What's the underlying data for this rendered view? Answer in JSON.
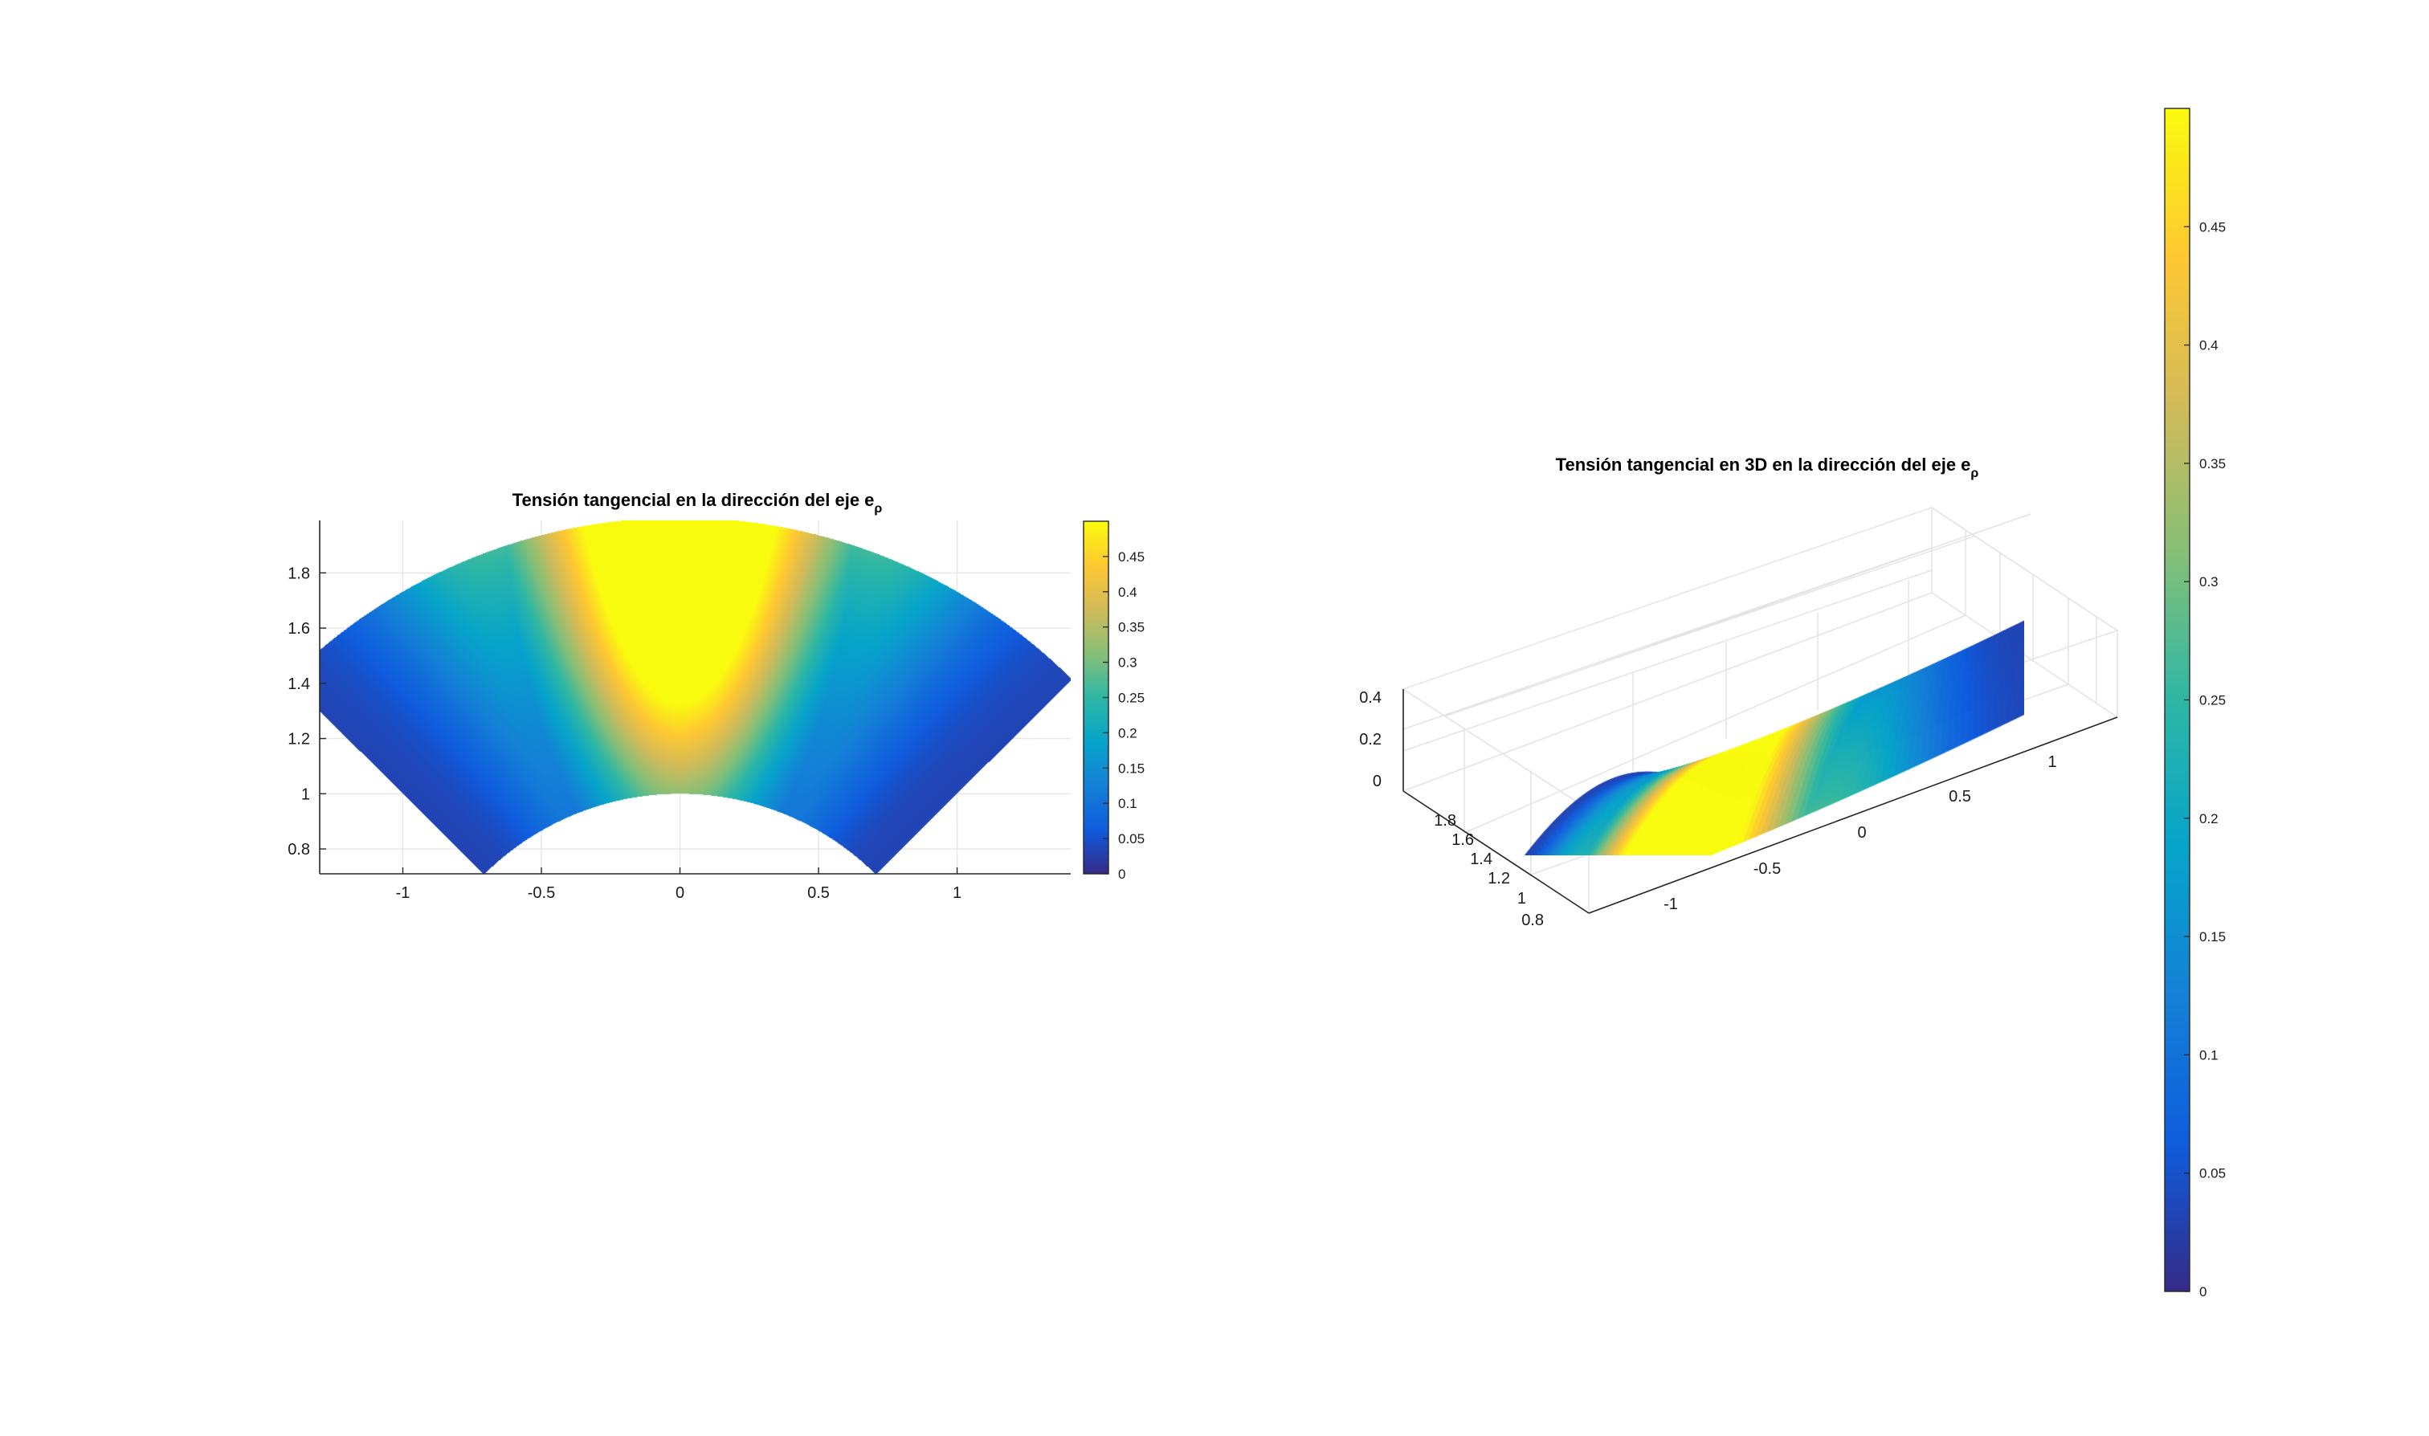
{
  "colors": {
    "colormap": "parula",
    "parula_stops": [
      "#352a87",
      "#0f5cdd",
      "#1481d6",
      "#06a4ca",
      "#2eb7a4",
      "#87bf77",
      "#d1bb59",
      "#fec832",
      "#f9fb0e"
    ],
    "axis": "#262626",
    "grid": "#e6e6e6"
  },
  "chart_data": [
    {
      "type": "heatmap",
      "title": "Tensión tangencial en la dirección del eje e",
      "title_subscript": "ρ",
      "xlabel": "",
      "ylabel": "",
      "xlim": [
        -1.3,
        1.41
      ],
      "ylim": [
        0.71,
        1.99
      ],
      "xticks": [
        -1,
        -0.5,
        0,
        0.5,
        1
      ],
      "xtick_labels": [
        "-1",
        "-0.5",
        "0",
        "0.5",
        "1"
      ],
      "yticks": [
        0.8,
        1,
        1.2,
        1.4,
        1.6,
        1.8
      ],
      "ytick_labels": [
        "0.8",
        "1",
        "1.2",
        "1.4",
        "1.6",
        "1.8"
      ],
      "grid": true,
      "domain": {
        "shape": "annular sector",
        "r_inner": 1,
        "r_outer": 2,
        "theta_deg": [
          45,
          135
        ]
      },
      "colorbar": {
        "limits": [
          0,
          0.5
        ],
        "ticks": [
          0,
          0.05,
          0.1,
          0.15,
          0.2,
          0.25,
          0.3,
          0.35,
          0.4,
          0.45
        ],
        "tick_labels": [
          "0",
          "0.05",
          "0.1",
          "0.15",
          "0.2",
          "0.25",
          "0.3",
          "0.35",
          "0.4",
          "0.45"
        ]
      }
    },
    {
      "type": "heatmap",
      "title": "Tensión tangencial en 3D en la dirección del eje e",
      "title_subscript": "ρ",
      "xlabel": "",
      "ylabel": "",
      "zlabel": "",
      "xticks": [
        -1,
        -0.5,
        0,
        0.5,
        1
      ],
      "xtick_labels": [
        "-1",
        "-0.5",
        "0",
        "0.5",
        "1"
      ],
      "yticks": [
        0.8,
        1,
        1.2,
        1.4,
        1.6,
        1.8
      ],
      "ytick_labels": [
        "0.8",
        "1",
        "1.2",
        "1.4",
        "1.6",
        "1.8"
      ],
      "zticks": [
        0,
        0.2,
        0.4
      ],
      "ztick_labels": [
        "0",
        "0.2",
        "0.4"
      ],
      "grid": true,
      "colorbar": {
        "limits": [
          0,
          0.5
        ],
        "ticks": [
          0,
          0.05,
          0.1,
          0.15,
          0.2,
          0.25,
          0.3,
          0.35,
          0.4,
          0.45
        ],
        "tick_labels": [
          "0",
          "0.05",
          "0.1",
          "0.15",
          "0.2",
          "0.25",
          "0.3",
          "0.35",
          "0.4",
          "0.45"
        ]
      }
    }
  ]
}
